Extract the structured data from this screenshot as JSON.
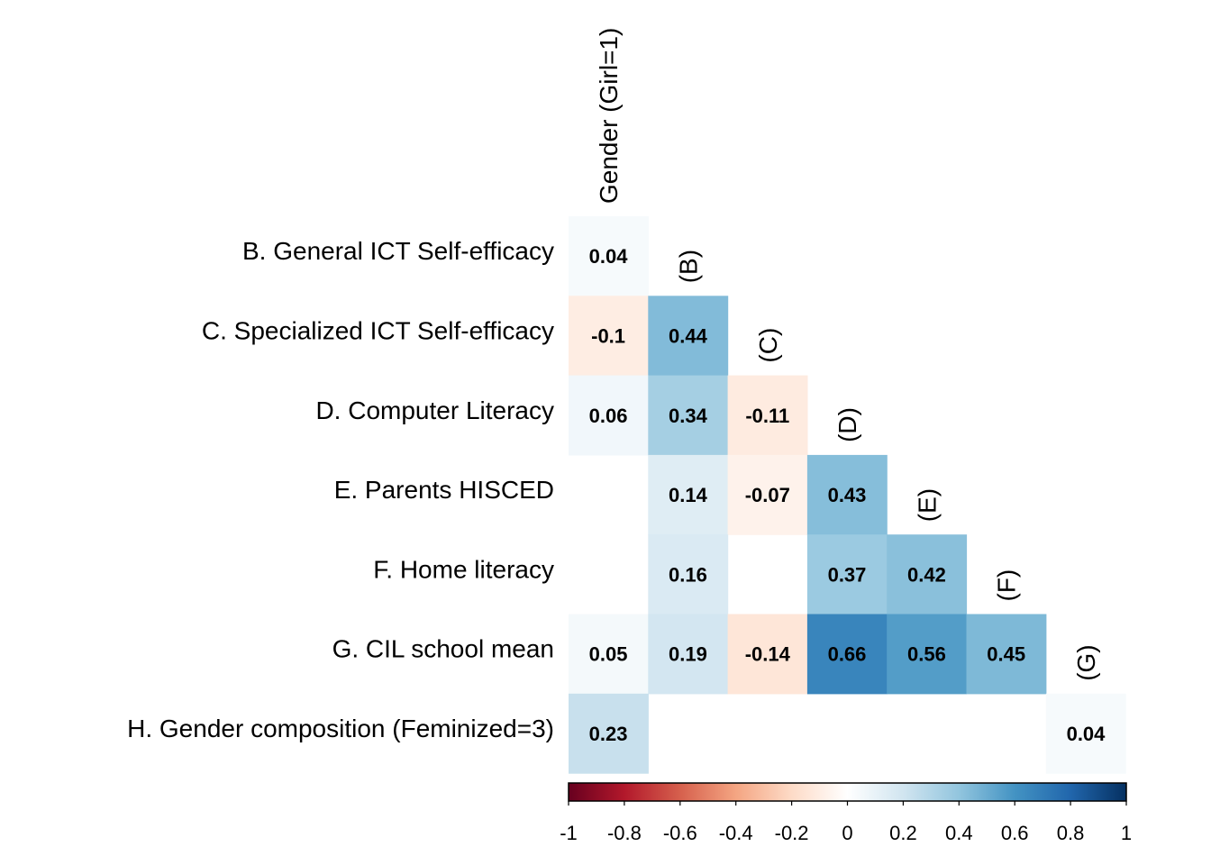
{
  "chart_data": {
    "type": "heatmap",
    "row_labels": [
      "B. General ICT Self-efficacy",
      "C. Specialized ICT Self-efficacy",
      "D. Computer Literacy",
      "E. Parents HISCED",
      "F. Home literacy",
      "G. CIL school mean",
      "H. Gender composition (Feminized=3)"
    ],
    "column_labels": [
      "Gender (Girl=1)",
      "(B)",
      "(C)",
      "(D)",
      "(E)",
      "(F)",
      "(G)"
    ],
    "matrix": [
      [
        0.04,
        null,
        null,
        null,
        null,
        null,
        null
      ],
      [
        -0.1,
        0.44,
        null,
        null,
        null,
        null,
        null
      ],
      [
        0.06,
        0.34,
        -0.11,
        null,
        null,
        null,
        null
      ],
      [
        null,
        0.14,
        -0.07,
        0.43,
        null,
        null,
        null
      ],
      [
        null,
        0.16,
        null,
        0.37,
        0.42,
        null,
        null
      ],
      [
        0.05,
        0.19,
        -0.14,
        0.66,
        0.56,
        0.45,
        null
      ],
      [
        0.23,
        null,
        null,
        null,
        null,
        null,
        0.04
      ]
    ],
    "value_labels": [
      [
        "0.04",
        null,
        null,
        null,
        null,
        null,
        null
      ],
      [
        "-0.1",
        "0.44",
        null,
        null,
        null,
        null,
        null
      ],
      [
        "0.06",
        "0.34",
        "-0.11",
        null,
        null,
        null,
        null
      ],
      [
        null,
        "0.14",
        "-0.07",
        "0.43",
        null,
        null,
        null
      ],
      [
        null,
        "0.16",
        null,
        "0.37",
        "0.42",
        null,
        null
      ],
      [
        "0.05",
        "0.19",
        "-0.14",
        "0.66",
        "0.56",
        "0.45",
        null
      ],
      [
        "0.23",
        null,
        null,
        null,
        null,
        null,
        "0.04"
      ]
    ],
    "colorbar": {
      "range": [
        -1,
        1
      ],
      "ticks": [
        "-1",
        "-0.8",
        "-0.6",
        "-0.4",
        "-0.2",
        "0",
        "0.2",
        "0.4",
        "0.6",
        "0.8",
        "1"
      ],
      "colors": [
        "#67001F",
        "#B2182B",
        "#D6604D",
        "#F4A582",
        "#FDDBC7",
        "#FFFFFF",
        "#D1E5F0",
        "#92C5DE",
        "#4393C3",
        "#2166AC",
        "#053061"
      ]
    },
    "legend_placement": "bottom"
  }
}
